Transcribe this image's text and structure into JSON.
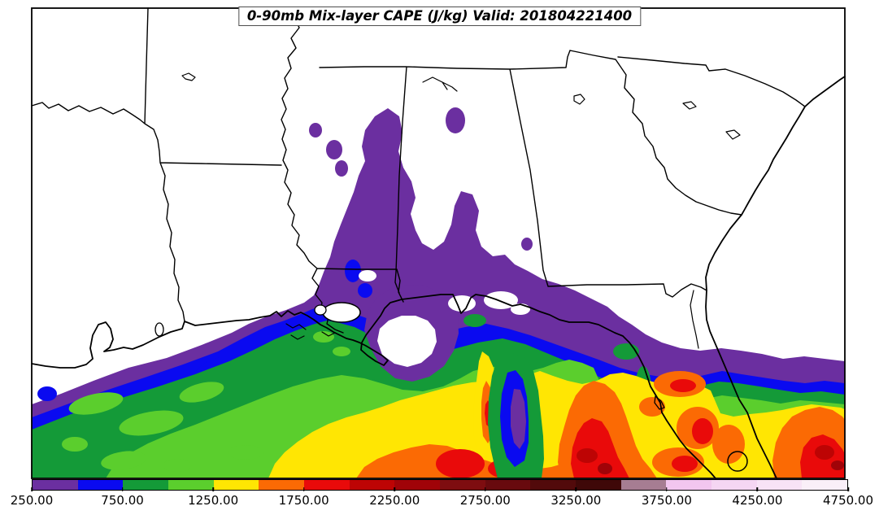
{
  "title": "0-90mb Mix-layer CAPE (J/kg) Valid: 201804221400",
  "colorbar": {
    "units": "J/kg",
    "min": 250,
    "max": 4750,
    "interval": 250,
    "tick_labels": [
      "250.00",
      "750.00",
      "1250.00",
      "1750.00",
      "2250.00",
      "2750.00",
      "3250.00",
      "3750.00",
      "4250.00",
      "4750.00"
    ],
    "segment_colors": [
      "#6B2FA0",
      "#0A0AF0",
      "#149A38",
      "#5BCE2D",
      "#FFE603",
      "#FB6A04",
      "#E90A0A",
      "#BD0404",
      "#A00308",
      "#7E0D10",
      "#680A0E",
      "#520A0B",
      "#3F0808",
      "#A67D92",
      "#F2C6EF",
      "#F5D6F3",
      "#F8E3F6",
      "#FAEFF8"
    ]
  },
  "map": {
    "no_data_color": "#FFFFFF",
    "boundary_color": "#000000"
  },
  "chart_data": {
    "type": "heatmap",
    "title": "0-90mb Mix-layer CAPE (J/kg) Valid: 201804221400",
    "field": "Mix-layer CAPE",
    "units": "J/kg",
    "valid_time_label": "201804221400",
    "colorbar_ticks": [
      250,
      750,
      1250,
      1750,
      2250,
      2750,
      3250,
      3750,
      4250,
      4750
    ],
    "contour_levels": [
      250,
      500,
      750,
      1000,
      1250,
      1500,
      1750,
      2000,
      2250,
      2500,
      2750,
      3000,
      3250,
      3500,
      3750,
      4000,
      4250,
      4500,
      4750
    ],
    "legend_position": "bottom"
  }
}
